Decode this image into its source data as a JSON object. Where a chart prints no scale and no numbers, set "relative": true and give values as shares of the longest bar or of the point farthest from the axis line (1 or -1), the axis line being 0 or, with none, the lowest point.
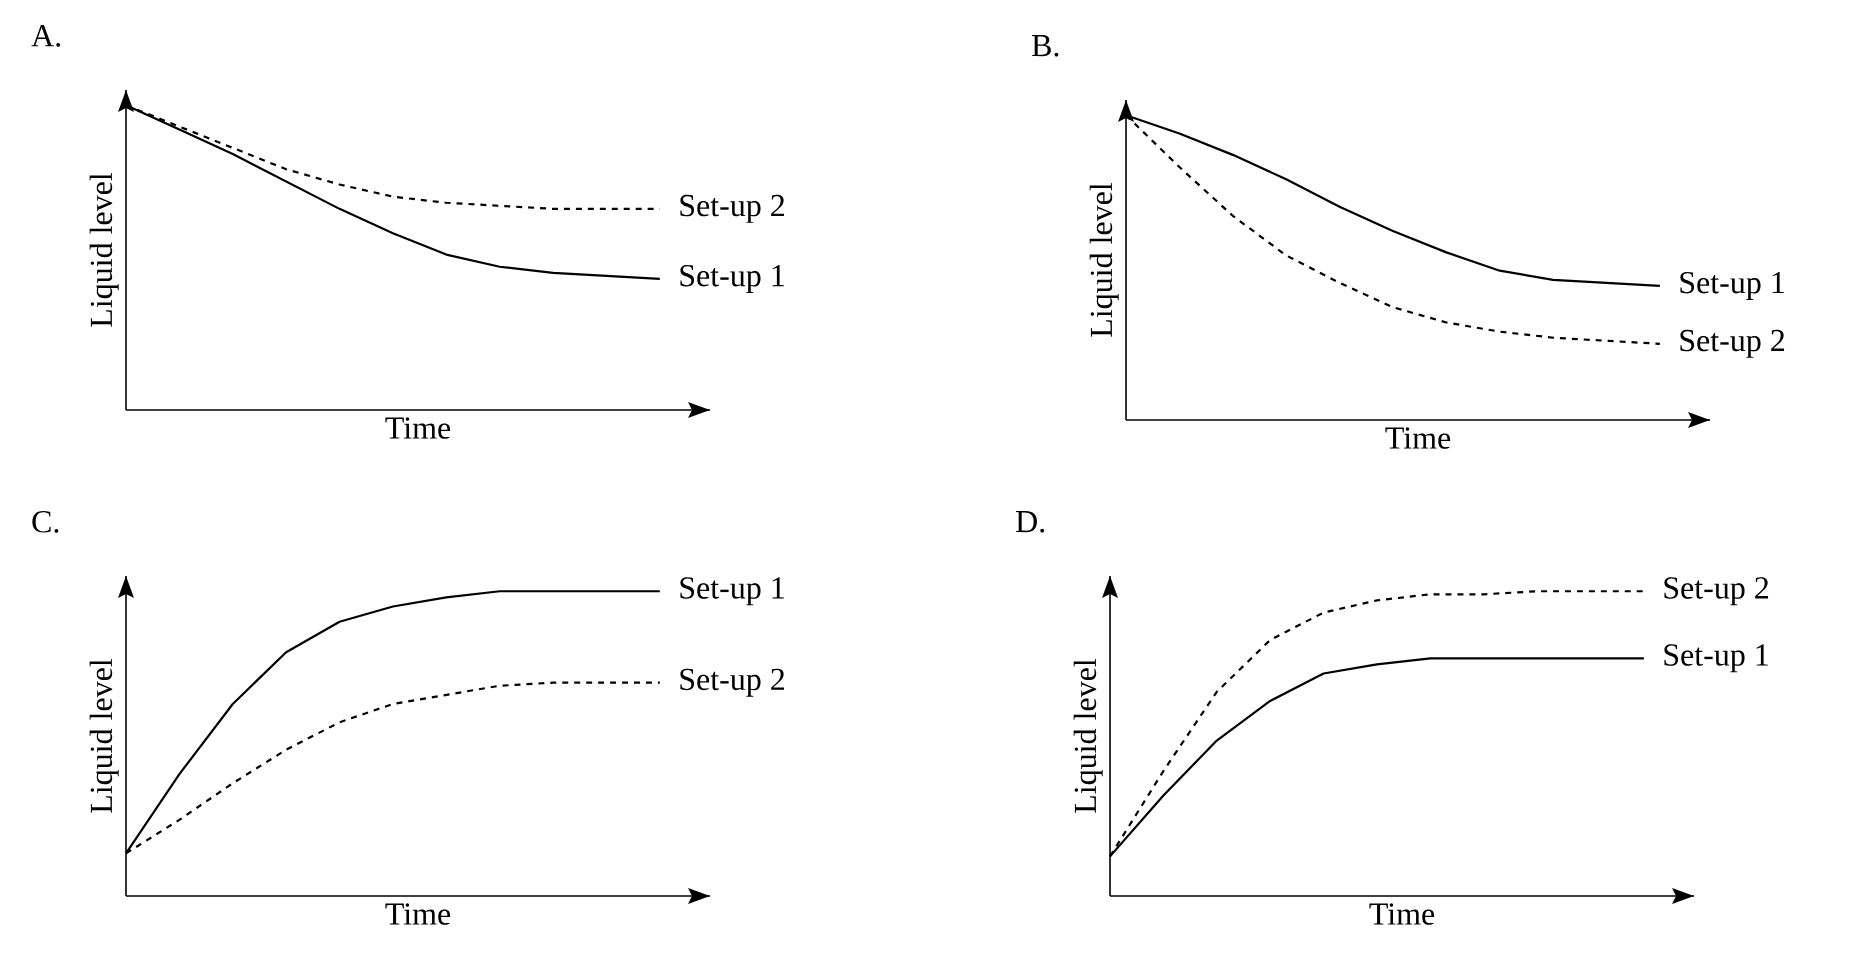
{
  "chart_data": [
    {
      "type": "line",
      "title": "A.",
      "xlabel": "Time",
      "ylabel": "Liquid level",
      "relative": true,
      "categories": [
        null,
        null,
        null,
        null,
        null,
        null,
        null,
        null,
        null,
        null,
        null
      ],
      "series": [
        {
          "name": "Set-up 1",
          "color": "#000000",
          "line_style": "solid",
          "values": [
            1,
            0.92,
            0.84,
            0.75,
            0.66,
            0.58,
            0.51,
            0.47,
            0.45,
            0.44,
            0.43
          ]
        },
        {
          "name": "Set-up 2",
          "color": "#000000",
          "line_style": "dashed",
          "values": [
            1,
            0.93,
            0.86,
            0.79,
            0.74,
            0.7,
            0.68,
            0.67,
            0.66,
            0.66,
            0.66
          ]
        }
      ]
    },
    {
      "type": "line",
      "title": "B.",
      "xlabel": "Time",
      "ylabel": "Liquid level",
      "relative": true,
      "categories": [
        null,
        null,
        null,
        null,
        null,
        null,
        null,
        null,
        null,
        null,
        null
      ],
      "series": [
        {
          "name": "Set-up 1",
          "color": "#000000",
          "line_style": "solid",
          "values": [
            1,
            0.94,
            0.87,
            0.79,
            0.7,
            0.62,
            0.55,
            0.49,
            0.46,
            0.45,
            0.44
          ]
        },
        {
          "name": "Set-up 2",
          "color": "#000000",
          "line_style": "dashed",
          "values": [
            1,
            0.83,
            0.67,
            0.54,
            0.45,
            0.37,
            0.32,
            0.29,
            0.27,
            0.26,
            0.25
          ]
        }
      ]
    },
    {
      "type": "line",
      "title": "C.",
      "xlabel": "Time",
      "ylabel": "Liquid level",
      "relative": true,
      "categories": [
        null,
        null,
        null,
        null,
        null,
        null,
        null,
        null,
        null,
        null,
        null
      ],
      "series": [
        {
          "name": "Set-up 1",
          "color": "#000000",
          "line_style": "solid",
          "values": [
            0.14,
            0.4,
            0.63,
            0.8,
            0.9,
            0.95,
            0.98,
            1,
            1,
            1,
            1
          ]
        },
        {
          "name": "Set-up 2",
          "color": "#000000",
          "line_style": "dashed",
          "values": [
            0.14,
            0.25,
            0.37,
            0.48,
            0.57,
            0.63,
            0.66,
            0.69,
            0.7,
            0.7,
            0.7
          ]
        }
      ]
    },
    {
      "type": "line",
      "title": "D.",
      "xlabel": "Time",
      "ylabel": "Liquid level",
      "relative": true,
      "categories": [
        null,
        null,
        null,
        null,
        null,
        null,
        null,
        null,
        null,
        null,
        null
      ],
      "series": [
        {
          "name": "Set-up 2",
          "color": "#000000",
          "line_style": "dashed",
          "values": [
            0.13,
            0.41,
            0.67,
            0.84,
            0.93,
            0.97,
            0.99,
            0.99,
            1,
            1,
            1
          ]
        },
        {
          "name": "Set-up 1",
          "color": "#000000",
          "line_style": "solid",
          "values": [
            0.13,
            0.33,
            0.51,
            0.64,
            0.73,
            0.76,
            0.78,
            0.78,
            0.78,
            0.78,
            0.78
          ]
        }
      ]
    }
  ]
}
